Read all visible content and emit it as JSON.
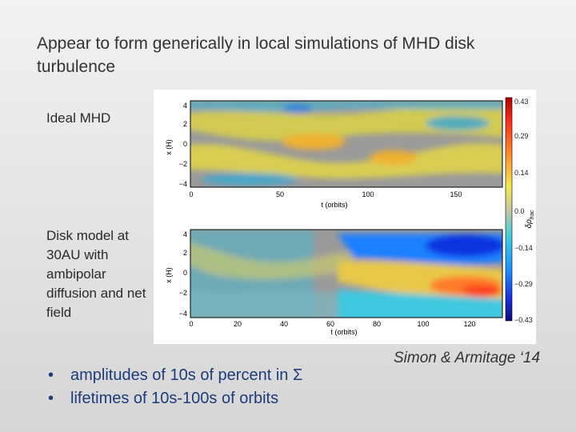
{
  "slide": {
    "title": "Appear to form generically in local simulations of MHD disk turbulence",
    "label_ideal": "Ideal MHD",
    "label_disk": "Disk model at 30AU with ambipolar diffusion and net field",
    "bullets": [
      "amplitudes of 10s of percent in Σ",
      "lifetimes of 10s-100s of orbits"
    ],
    "citation": "Simon & Armitage ‘14"
  },
  "chart_data": [
    {
      "type": "heatmap",
      "title": "Ideal MHD",
      "xlabel": "t (orbits)",
      "ylabel": "x (H)",
      "x_ticks": [
        "0",
        "50",
        "100",
        "150"
      ],
      "y_ticks": [
        "4",
        "2",
        "0",
        "−2",
        "−4"
      ],
      "xlim": [
        0,
        175
      ],
      "ylim": [
        -4.5,
        4.5
      ]
    },
    {
      "type": "heatmap",
      "title": "Disk model at 30AU with ambipolar diffusion and net field",
      "xlabel": "t (orbits)",
      "ylabel": "x (H)",
      "x_ticks": [
        "0",
        "20",
        "40",
        "60",
        "80",
        "100",
        "120"
      ],
      "y_ticks": [
        "4",
        "2",
        "0",
        "−2",
        "−4"
      ],
      "xlim": [
        0,
        135
      ],
      "ylim": [
        -4.5,
        4.5
      ]
    },
    {
      "type": "colorbar",
      "label": "δρ",
      "label_sub": "frac",
      "tick_labels": [
        "0.43",
        "0.29",
        "0.14",
        "0.0",
        "−0.14",
        "−0.29",
        "−0.43"
      ],
      "range": [
        -0.43,
        0.43
      ]
    }
  ]
}
